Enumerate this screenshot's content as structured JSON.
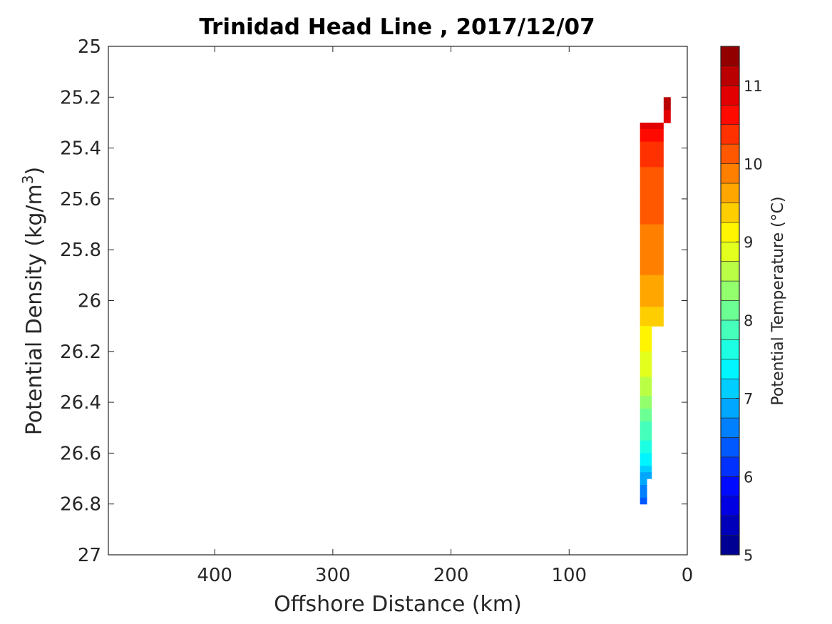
{
  "chart_data": {
    "type": "contour",
    "title": "Trinidad Head Line , 2017/12/07",
    "xlabel": "Offshore Distance (km)",
    "ylabel": "Potential Density (kg/m3)",
    "ylabel_main": "Potential Density (kg/m",
    "ylabel_sup": "3",
    "ylabel_end": ")",
    "xlim": [
      490,
      0
    ],
    "x_reversed": true,
    "ylim": [
      25,
      27
    ],
    "y_reversed": true,
    "xticks": [
      400,
      300,
      200,
      100,
      0
    ],
    "xtick_labels": [
      "400",
      "300",
      "200",
      "100",
      "0"
    ],
    "yticks": [
      25,
      25.2,
      25.4,
      25.6,
      25.8,
      26,
      26.2,
      26.4,
      26.6,
      26.8,
      27
    ],
    "ytick_labels": [
      "25",
      "25.2",
      "25.4",
      "25.6",
      "25.8",
      "26",
      "26.2",
      "26.4",
      "26.6",
      "26.8",
      "27"
    ],
    "colorbar": {
      "label": "Potential Temperature (°C)",
      "min": 5,
      "max": 11.5,
      "step": 0.25,
      "ticks": [
        5,
        6,
        7,
        8,
        9,
        10,
        11
      ],
      "tick_labels": [
        "5",
        "6",
        "7",
        "8",
        "9",
        "10",
        "11"
      ],
      "colormap": "jet"
    },
    "stations": [
      {
        "x": 40,
        "density_top": 25.3,
        "density_bottom": 26.8
      },
      {
        "x": 30,
        "density_top": 25.3,
        "density_bottom": 26.7
      },
      {
        "x": 20,
        "density_top": 25.2,
        "density_bottom": 26.1
      }
    ],
    "temperature_profile": [
      {
        "density": 25.2,
        "temperature": 11.1
      },
      {
        "density": 25.3,
        "temperature": 10.9
      },
      {
        "density": 25.4,
        "temperature": 10.4
      },
      {
        "density": 25.5,
        "temperature": 10.2
      },
      {
        "density": 25.6,
        "temperature": 10.1
      },
      {
        "density": 25.7,
        "temperature": 10.0
      },
      {
        "density": 25.8,
        "temperature": 9.9
      },
      {
        "density": 25.9,
        "temperature": 9.75
      },
      {
        "density": 26.0,
        "temperature": 9.6
      },
      {
        "density": 26.1,
        "temperature": 9.25
      },
      {
        "density": 26.2,
        "temperature": 9.0
      },
      {
        "density": 26.3,
        "temperature": 8.75
      },
      {
        "density": 26.4,
        "temperature": 8.4
      },
      {
        "density": 26.5,
        "temperature": 7.9
      },
      {
        "density": 26.6,
        "temperature": 7.5
      },
      {
        "density": 26.7,
        "temperature": 6.9
      },
      {
        "density": 26.8,
        "temperature": 6.4
      }
    ],
    "grid": false,
    "legend": "colorbar-right"
  }
}
